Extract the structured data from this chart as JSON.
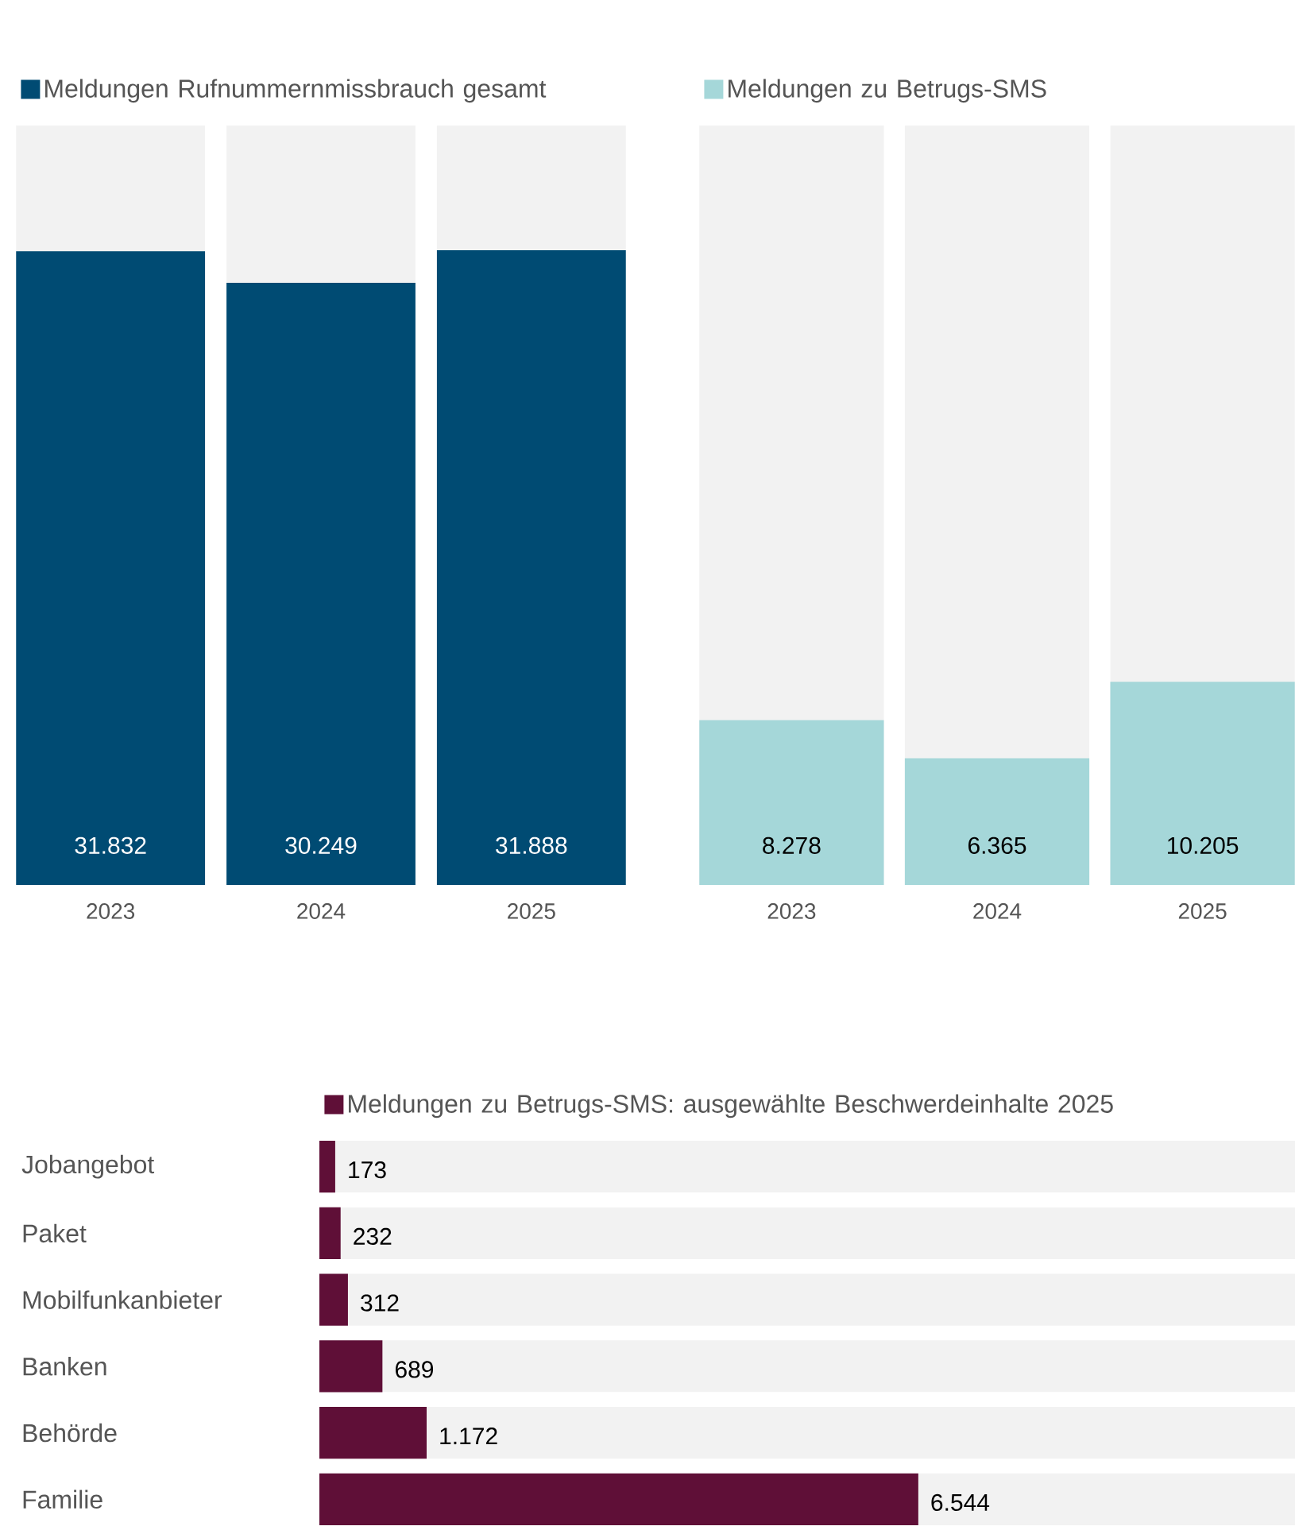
{
  "chart_data": [
    {
      "type": "bar",
      "categories": [
        "2023",
        "2024",
        "2025"
      ],
      "series": [
        {
          "name": "Meldungen Rufnummernmissbrauch gesamt",
          "color": "#004b73",
          "values": [
            31832,
            30249,
            31888
          ],
          "value_labels": [
            "31.832",
            "30.249",
            "31.888"
          ]
        }
      ],
      "ylim": [
        0,
        38150
      ],
      "tick_labels": "x",
      "legend": "top left"
    },
    {
      "type": "bar",
      "categories": [
        "2023",
        "2024",
        "2025"
      ],
      "series": [
        {
          "name": "Meldungen zu Betrugs-SMS",
          "color": "#a5d7d9",
          "values": [
            8278,
            6365,
            10205
          ],
          "value_labels": [
            "8.278",
            "6.365",
            "10.205"
          ]
        }
      ],
      "ylim": [
        0,
        38150
      ],
      "tick_labels": "x",
      "legend": "top left"
    },
    {
      "type": "bar",
      "orientation": "horizontal",
      "categories": [
        "Jobangebot",
        "Paket",
        "Mobilfunkanbieter",
        "Banken",
        "Behörde",
        "Familie"
      ],
      "series": [
        {
          "name": "Meldungen zu Betrugs-SMS: ausgewählte Beschwerdeinhalte 2025",
          "color": "#5f0f37",
          "values": [
            173,
            232,
            312,
            689,
            1172,
            6544
          ],
          "value_labels": [
            "173",
            "232",
            "312",
            "689",
            "1.172",
            "6.544"
          ]
        }
      ],
      "xlim": [
        0,
        10660
      ],
      "tick_labels": "y",
      "legend": "top left"
    }
  ]
}
